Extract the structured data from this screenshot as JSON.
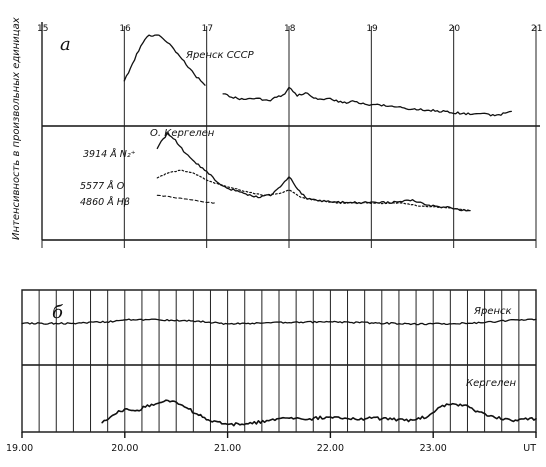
{
  "chart_data": [
    {
      "panel": "а",
      "type": "line",
      "ylabel": "Интенсивность в произвольных единицах",
      "x_unit": "hours (UT)",
      "xlim": [
        15,
        21
      ],
      "x_ticks": [
        15,
        16,
        17,
        18,
        19,
        20,
        21
      ],
      "x_tick_labels": [
        "15",
        "16",
        "17",
        "18",
        "19",
        "20",
        "21"
      ],
      "ylim": [
        0,
        10
      ],
      "groups": [
        {
          "name": "Яренск СССР",
          "series": [
            {
              "name": "",
              "style": "solid",
              "x": [
                16.0,
                16.1,
                16.2,
                16.3,
                16.42,
                16.55,
                16.7,
                16.85,
                16.98,
                17.1,
                17.2,
                17.3,
                17.45,
                17.6,
                17.75,
                17.85,
                17.95,
                18.0,
                18.1,
                18.2,
                18.35,
                18.5,
                18.65,
                18.8,
                18.95,
                19.1,
                19.3,
                19.5,
                19.7,
                19.9,
                20.1,
                20.3,
                20.5,
                20.7
              ],
              "y": [
                7.3,
                8.1,
                8.9,
                9.4,
                9.4,
                9.0,
                8.3,
                7.6,
                7.1,
                null,
                6.7,
                6.55,
                6.45,
                6.5,
                6.4,
                6.55,
                6.7,
                7.0,
                6.6,
                6.75,
                6.45,
                6.5,
                6.3,
                6.35,
                6.2,
                6.2,
                6.1,
                6.0,
                5.95,
                5.9,
                5.8,
                5.8,
                5.7,
                5.9
              ]
            }
          ]
        },
        {
          "name": "О. Кергелен",
          "series": [
            {
              "name": "3914 Å N₂⁺",
              "style": "solid",
              "x": [
                16.4,
                16.52,
                16.62,
                16.72,
                16.85,
                17.0,
                17.1,
                17.22,
                17.35,
                17.5,
                17.65,
                17.8,
                17.92,
                18.0,
                18.08,
                18.2,
                18.35,
                18.5,
                18.7,
                18.9,
                19.1,
                19.3,
                19.5,
                19.7,
                19.9,
                20.1,
                20.2
              ],
              "y": [
                4.2,
                4.9,
                4.6,
                4.05,
                3.6,
                3.15,
                2.75,
                2.45,
                2.25,
                2.05,
                1.95,
                2.1,
                2.55,
                2.9,
                2.45,
                1.95,
                1.8,
                1.75,
                1.72,
                1.72,
                1.7,
                1.75,
                1.85,
                1.6,
                1.5,
                1.35,
                1.35
              ]
            },
            {
              "name": "5577 Å O",
              "style": "dotted",
              "x": [
                16.4,
                16.55,
                16.7,
                16.85,
                17.0,
                17.15,
                17.3,
                17.5,
                17.7,
                17.9,
                18.0,
                18.15,
                18.35,
                18.6,
                18.85,
                19.1,
                19.35,
                19.6,
                19.85,
                20.1,
                20.2
              ],
              "y": [
                2.85,
                3.1,
                3.2,
                3.05,
                2.75,
                2.55,
                2.4,
                2.2,
                2.05,
                2.15,
                2.3,
                1.95,
                1.8,
                1.7,
                1.7,
                1.68,
                1.7,
                1.55,
                1.5,
                1.4,
                1.35
              ]
            },
            {
              "name": "4860 Å Hβ",
              "style": "dashed",
              "x": [
                16.4,
                16.6,
                16.8,
                17.0,
                17.1
              ],
              "y": [
                2.05,
                1.95,
                1.85,
                1.72,
                1.7
              ]
            }
          ]
        }
      ]
    },
    {
      "panel": "б",
      "type": "line",
      "xlim": [
        19.0,
        24.0
      ],
      "x_ticks": [
        19,
        20,
        21,
        22,
        23,
        24
      ],
      "x_tick_labels": [
        "19.00",
        "20.00",
        "21.00",
        "22.00",
        "23.00",
        "UT"
      ],
      "ylim": [
        0,
        10
      ],
      "grid": "vertical lines every 10 minutes",
      "series": [
        {
          "name": "Яренск",
          "x": [
            19.0,
            19.5,
            19.9,
            20.0,
            20.2,
            20.45,
            20.7,
            21.0,
            21.3,
            21.6,
            22.0,
            22.4,
            22.8,
            23.2,
            23.5,
            23.8,
            24.0
          ],
          "y": [
            6.2,
            6.25,
            6.55,
            6.8,
            6.85,
            6.75,
            6.6,
            6.15,
            6.3,
            6.35,
            6.5,
            6.3,
            6.15,
            6.2,
            6.35,
            6.8,
            6.9
          ]
        },
        {
          "name": "Кергелен",
          "x": [
            19.78,
            19.9,
            20.0,
            20.1,
            20.2,
            20.3,
            20.4,
            20.5,
            20.6,
            20.7,
            20.85,
            21.0,
            21.2,
            21.4,
            21.6,
            21.8,
            22.0,
            22.2,
            22.4,
            22.6,
            22.8,
            22.95,
            23.05,
            23.15,
            23.3,
            23.45,
            23.6,
            23.8,
            24.0
          ],
          "y": [
            1.2,
            2.5,
            3.4,
            3.1,
            3.7,
            4.2,
            4.8,
            4.5,
            3.6,
            2.6,
            1.3,
            0.9,
            1.0,
            1.5,
            1.9,
            1.8,
            2.1,
            1.7,
            1.9,
            1.7,
            1.6,
            2.2,
            3.6,
            4.1,
            4.0,
            2.9,
            2.0,
            1.6,
            1.8
          ]
        }
      ]
    }
  ]
}
